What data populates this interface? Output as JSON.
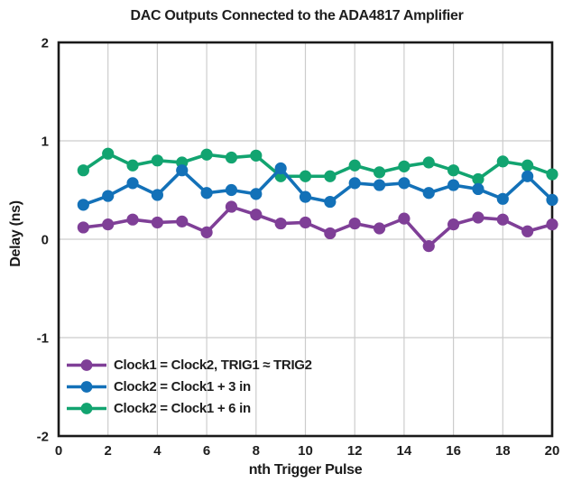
{
  "chart_data": {
    "type": "line",
    "title": "DAC Outputs Connected to the ADA4817 Amplifier",
    "xlabel": "nth Trigger Pulse",
    "ylabel": "Delay (ns)",
    "xlim": [
      0,
      20
    ],
    "ylim": [
      -2,
      2
    ],
    "x_ticks": [
      0,
      2,
      4,
      6,
      8,
      10,
      12,
      14,
      16,
      18,
      20
    ],
    "y_ticks": [
      2,
      1,
      0,
      -1,
      -2
    ],
    "grid": true,
    "legend_position": "lower left",
    "x": [
      1,
      2,
      3,
      4,
      5,
      6,
      7,
      8,
      9,
      10,
      11,
      12,
      13,
      14,
      15,
      16,
      17,
      18,
      19,
      20
    ],
    "series": [
      {
        "name": "Clock1 = Clock2, TRIG1 ≈ TRIG2",
        "color": "#7f3f97",
        "values": [
          0.12,
          0.15,
          0.2,
          0.17,
          0.18,
          0.07,
          0.33,
          0.25,
          0.16,
          0.17,
          0.06,
          0.16,
          0.11,
          0.21,
          -0.07,
          0.15,
          0.22,
          0.2,
          0.08,
          0.15
        ]
      },
      {
        "name": "Clock2 = Clock1 + 3 in",
        "color": "#1371b8",
        "values": [
          0.35,
          0.44,
          0.57,
          0.45,
          0.7,
          0.47,
          0.5,
          0.46,
          0.72,
          0.43,
          0.38,
          0.57,
          0.55,
          0.57,
          0.47,
          0.55,
          0.51,
          0.41,
          0.64,
          0.4
        ]
      },
      {
        "name": "Clock2 = Clock1 + 6 in",
        "color": "#12a470",
        "values": [
          0.7,
          0.87,
          0.75,
          0.8,
          0.78,
          0.86,
          0.83,
          0.85,
          0.64,
          0.64,
          0.64,
          0.75,
          0.68,
          0.74,
          0.78,
          0.7,
          0.61,
          0.79,
          0.75,
          0.66
        ]
      }
    ],
    "styles": {
      "grid_color": "#cccccc",
      "border_color": "#1a1a1a",
      "marker_radius": 6.6,
      "line_width": 3.6,
      "z_order": [
        0,
        2,
        1
      ]
    }
  }
}
